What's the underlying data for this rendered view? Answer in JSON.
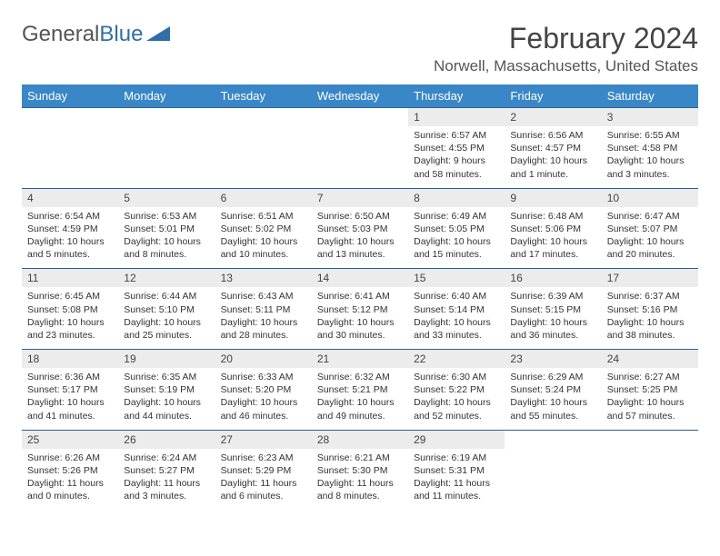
{
  "logo": {
    "text_gray": "General",
    "text_blue": "Blue",
    "shape_color": "#2f6fa8"
  },
  "header": {
    "month_title": "February 2024",
    "location": "Norwell, Massachusetts, United States"
  },
  "styling": {
    "header_bg": "#3a87c8",
    "daynum_bg": "#ececec",
    "border_color": "#2f5f8f",
    "body_font_size": 10.5,
    "title_font_size": 32
  },
  "weekdays": [
    "Sunday",
    "Monday",
    "Tuesday",
    "Wednesday",
    "Thursday",
    "Friday",
    "Saturday"
  ],
  "weeks": [
    [
      null,
      null,
      null,
      null,
      {
        "day": "1",
        "sunrise": "Sunrise: 6:57 AM",
        "sunset": "Sunset: 4:55 PM",
        "daylight": "Daylight: 9 hours and 58 minutes."
      },
      {
        "day": "2",
        "sunrise": "Sunrise: 6:56 AM",
        "sunset": "Sunset: 4:57 PM",
        "daylight": "Daylight: 10 hours and 1 minute."
      },
      {
        "day": "3",
        "sunrise": "Sunrise: 6:55 AM",
        "sunset": "Sunset: 4:58 PM",
        "daylight": "Daylight: 10 hours and 3 minutes."
      }
    ],
    [
      {
        "day": "4",
        "sunrise": "Sunrise: 6:54 AM",
        "sunset": "Sunset: 4:59 PM",
        "daylight": "Daylight: 10 hours and 5 minutes."
      },
      {
        "day": "5",
        "sunrise": "Sunrise: 6:53 AM",
        "sunset": "Sunset: 5:01 PM",
        "daylight": "Daylight: 10 hours and 8 minutes."
      },
      {
        "day": "6",
        "sunrise": "Sunrise: 6:51 AM",
        "sunset": "Sunset: 5:02 PM",
        "daylight": "Daylight: 10 hours and 10 minutes."
      },
      {
        "day": "7",
        "sunrise": "Sunrise: 6:50 AM",
        "sunset": "Sunset: 5:03 PM",
        "daylight": "Daylight: 10 hours and 13 minutes."
      },
      {
        "day": "8",
        "sunrise": "Sunrise: 6:49 AM",
        "sunset": "Sunset: 5:05 PM",
        "daylight": "Daylight: 10 hours and 15 minutes."
      },
      {
        "day": "9",
        "sunrise": "Sunrise: 6:48 AM",
        "sunset": "Sunset: 5:06 PM",
        "daylight": "Daylight: 10 hours and 17 minutes."
      },
      {
        "day": "10",
        "sunrise": "Sunrise: 6:47 AM",
        "sunset": "Sunset: 5:07 PM",
        "daylight": "Daylight: 10 hours and 20 minutes."
      }
    ],
    [
      {
        "day": "11",
        "sunrise": "Sunrise: 6:45 AM",
        "sunset": "Sunset: 5:08 PM",
        "daylight": "Daylight: 10 hours and 23 minutes."
      },
      {
        "day": "12",
        "sunrise": "Sunrise: 6:44 AM",
        "sunset": "Sunset: 5:10 PM",
        "daylight": "Daylight: 10 hours and 25 minutes."
      },
      {
        "day": "13",
        "sunrise": "Sunrise: 6:43 AM",
        "sunset": "Sunset: 5:11 PM",
        "daylight": "Daylight: 10 hours and 28 minutes."
      },
      {
        "day": "14",
        "sunrise": "Sunrise: 6:41 AM",
        "sunset": "Sunset: 5:12 PM",
        "daylight": "Daylight: 10 hours and 30 minutes."
      },
      {
        "day": "15",
        "sunrise": "Sunrise: 6:40 AM",
        "sunset": "Sunset: 5:14 PM",
        "daylight": "Daylight: 10 hours and 33 minutes."
      },
      {
        "day": "16",
        "sunrise": "Sunrise: 6:39 AM",
        "sunset": "Sunset: 5:15 PM",
        "daylight": "Daylight: 10 hours and 36 minutes."
      },
      {
        "day": "17",
        "sunrise": "Sunrise: 6:37 AM",
        "sunset": "Sunset: 5:16 PM",
        "daylight": "Daylight: 10 hours and 38 minutes."
      }
    ],
    [
      {
        "day": "18",
        "sunrise": "Sunrise: 6:36 AM",
        "sunset": "Sunset: 5:17 PM",
        "daylight": "Daylight: 10 hours and 41 minutes."
      },
      {
        "day": "19",
        "sunrise": "Sunrise: 6:35 AM",
        "sunset": "Sunset: 5:19 PM",
        "daylight": "Daylight: 10 hours and 44 minutes."
      },
      {
        "day": "20",
        "sunrise": "Sunrise: 6:33 AM",
        "sunset": "Sunset: 5:20 PM",
        "daylight": "Daylight: 10 hours and 46 minutes."
      },
      {
        "day": "21",
        "sunrise": "Sunrise: 6:32 AM",
        "sunset": "Sunset: 5:21 PM",
        "daylight": "Daylight: 10 hours and 49 minutes."
      },
      {
        "day": "22",
        "sunrise": "Sunrise: 6:30 AM",
        "sunset": "Sunset: 5:22 PM",
        "daylight": "Daylight: 10 hours and 52 minutes."
      },
      {
        "day": "23",
        "sunrise": "Sunrise: 6:29 AM",
        "sunset": "Sunset: 5:24 PM",
        "daylight": "Daylight: 10 hours and 55 minutes."
      },
      {
        "day": "24",
        "sunrise": "Sunrise: 6:27 AM",
        "sunset": "Sunset: 5:25 PM",
        "daylight": "Daylight: 10 hours and 57 minutes."
      }
    ],
    [
      {
        "day": "25",
        "sunrise": "Sunrise: 6:26 AM",
        "sunset": "Sunset: 5:26 PM",
        "daylight": "Daylight: 11 hours and 0 minutes."
      },
      {
        "day": "26",
        "sunrise": "Sunrise: 6:24 AM",
        "sunset": "Sunset: 5:27 PM",
        "daylight": "Daylight: 11 hours and 3 minutes."
      },
      {
        "day": "27",
        "sunrise": "Sunrise: 6:23 AM",
        "sunset": "Sunset: 5:29 PM",
        "daylight": "Daylight: 11 hours and 6 minutes."
      },
      {
        "day": "28",
        "sunrise": "Sunrise: 6:21 AM",
        "sunset": "Sunset: 5:30 PM",
        "daylight": "Daylight: 11 hours and 8 minutes."
      },
      {
        "day": "29",
        "sunrise": "Sunrise: 6:19 AM",
        "sunset": "Sunset: 5:31 PM",
        "daylight": "Daylight: 11 hours and 11 minutes."
      },
      null,
      null
    ]
  ]
}
